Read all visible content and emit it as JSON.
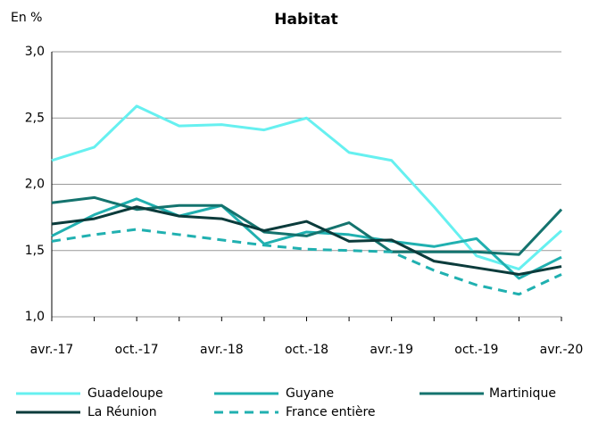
{
  "chart_data": {
    "type": "line",
    "title": "Habitat",
    "y_label": "En %",
    "categories": [
      "avr.-17",
      null,
      "oct.-17",
      null,
      "avr.-18",
      null,
      "oct.-18",
      null,
      "avr.-19",
      null,
      "oct.-19",
      null,
      "avr.-20"
    ],
    "series": [
      {
        "name": "Guadeloupe",
        "color": "#66f0f0",
        "values": [
          2.18,
          2.28,
          2.59,
          2.44,
          2.45,
          2.41,
          2.5,
          2.24,
          2.18,
          1.83,
          1.46,
          1.36,
          1.65
        ]
      },
      {
        "name": "Guyane",
        "color": "#20b0b0",
        "values": [
          1.61,
          1.77,
          1.89,
          1.76,
          1.84,
          1.55,
          1.64,
          1.62,
          1.57,
          1.53,
          1.59,
          1.29,
          1.45
        ]
      },
      {
        "name": "Martinique",
        "color": "#14736e",
        "values": [
          1.86,
          1.9,
          1.81,
          1.84,
          1.84,
          1.64,
          1.61,
          1.71,
          1.49,
          1.49,
          1.49,
          1.47,
          1.81
        ]
      },
      {
        "name": "La Réunion",
        "color": "#0b3b3b",
        "values": [
          1.7,
          1.74,
          1.83,
          1.76,
          1.74,
          1.65,
          1.72,
          1.57,
          1.58,
          1.42,
          1.37,
          1.32,
          1.38
        ]
      },
      {
        "name": "France entière",
        "color": "#20b0b0",
        "dashed": true,
        "values": [
          1.57,
          1.62,
          1.66,
          1.62,
          1.58,
          1.54,
          1.51,
          1.5,
          1.49,
          1.35,
          1.24,
          1.17,
          1.32
        ]
      }
    ],
    "ylim": [
      1.0,
      3.0
    ],
    "yticks": [
      {
        "value": 1.0,
        "label": "1,0"
      },
      {
        "value": 1.5,
        "label": "1,5"
      },
      {
        "value": 2.0,
        "label": "2,0"
      },
      {
        "value": 2.5,
        "label": "2,5"
      },
      {
        "value": 3.0,
        "label": "3,0"
      }
    ],
    "grid": true,
    "legend": "bottom"
  }
}
